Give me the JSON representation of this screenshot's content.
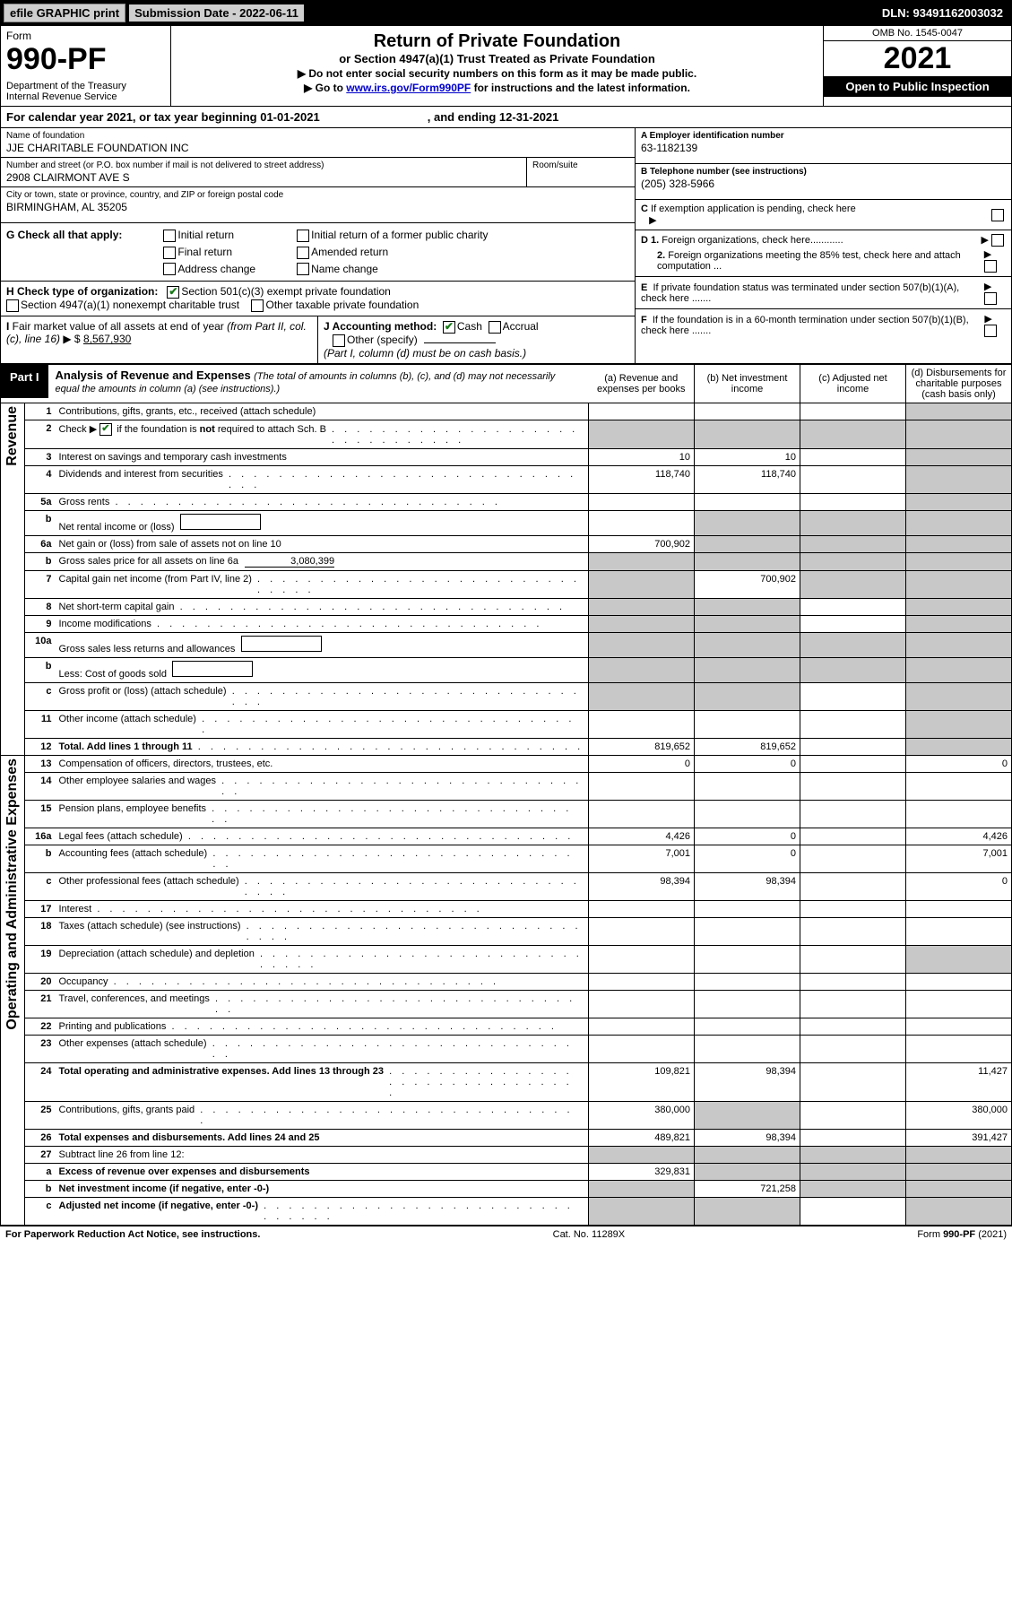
{
  "topbar": {
    "efile": "efile GRAPHIC print",
    "submission_label": "Submission Date - 2022-06-11",
    "dln": "DLN: 93491162003032"
  },
  "header": {
    "form_label": "Form",
    "form_number": "990-PF",
    "dept": "Department of the Treasury\nInternal Revenue Service",
    "title": "Return of Private Foundation",
    "subtitle": "or Section 4947(a)(1) Trust Treated as Private Foundation",
    "instr1": "▶ Do not enter social security numbers on this form as it may be made public.",
    "instr2_pre": "▶ Go to ",
    "instr2_link": "www.irs.gov/Form990PF",
    "instr2_post": " for instructions and the latest information.",
    "omb": "OMB No. 1545-0047",
    "year": "2021",
    "open": "Open to Public Inspection"
  },
  "calyear": {
    "text_a": "For calendar year 2021, or tax year beginning 01-01-2021",
    "text_b": ", and ending 12-31-2021"
  },
  "info": {
    "name_label": "Name of foundation",
    "name": "JJE CHARITABLE FOUNDATION INC",
    "addr_label": "Number and street (or P.O. box number if mail is not delivered to street address)",
    "addr": "2908 CLAIRMONT AVE S",
    "room_label": "Room/suite",
    "city_label": "City or town, state or province, country, and ZIP or foreign postal code",
    "city": "BIRMINGHAM, AL  35205",
    "a_label": "A Employer identification number",
    "a_val": "63-1182139",
    "b_label": "B Telephone number (see instructions)",
    "b_val": "(205) 328-5966",
    "c_label": "C If exemption application is pending, check here",
    "d1_label": "D 1. Foreign organizations, check here............",
    "d2_label": "2. Foreign organizations meeting the 85% test, check here and attach computation ...",
    "e_label": "E  If private foundation status was terminated under section 507(b)(1)(A), check here .......",
    "f_label": "F  If the foundation is in a 60-month termination under section 507(b)(1)(B), check here ......."
  },
  "g": {
    "label": "G Check all that apply:",
    "opts": [
      "Initial return",
      "Final return",
      "Address change",
      "Initial return of a former public charity",
      "Amended return",
      "Name change"
    ]
  },
  "h": {
    "label": "H Check type of organization:",
    "opt1": "Section 501(c)(3) exempt private foundation",
    "opt2": "Section 4947(a)(1) nonexempt charitable trust",
    "opt3": "Other taxable private foundation"
  },
  "i": {
    "label": "I Fair market value of all assets at end of year (from Part II, col. (c), line 16) ▶ $",
    "val": "8,567,930"
  },
  "j": {
    "label": "J Accounting method:",
    "cash": "Cash",
    "accrual": "Accrual",
    "other": "Other (specify)",
    "note": "(Part I, column (d) must be on cash basis.)"
  },
  "part1": {
    "label": "Part I",
    "title": "Analysis of Revenue and Expenses",
    "note": "(The total of amounts in columns (b), (c), and (d) may not necessarily equal the amounts in column (a) (see instructions).)",
    "cols": {
      "a": "(a)   Revenue and expenses per books",
      "b": "(b)   Net investment income",
      "c": "(c)   Adjusted net income",
      "d": "(d)   Disbursements for charitable purposes (cash basis only)"
    },
    "side_revenue": "Revenue",
    "side_expenses": "Operating and Administrative Expenses",
    "rows": [
      {
        "n": "1",
        "desc": "Contributions, gifts, grants, etc., received (attach schedule)",
        "a": "",
        "b": "",
        "c": "",
        "d": "",
        "d_grey": true,
        "dots": false
      },
      {
        "n": "2",
        "desc": "Check ▶ ☑ if the foundation is not required to attach Sch. B",
        "a": "",
        "b": "",
        "c": "",
        "d": "",
        "all_grey": true,
        "dots": true
      },
      {
        "n": "3",
        "desc": "Interest on savings and temporary cash investments",
        "a": "10",
        "b": "10",
        "c": "",
        "d": "",
        "d_grey": true
      },
      {
        "n": "4",
        "desc": "Dividends and interest from securities",
        "a": "118,740",
        "b": "118,740",
        "c": "",
        "d": "",
        "d_grey": true,
        "dots": true
      },
      {
        "n": "5a",
        "desc": "Gross rents",
        "a": "",
        "b": "",
        "c": "",
        "d": "",
        "d_grey": true,
        "dots": true
      },
      {
        "n": "b",
        "desc": "Net rental income or (loss)",
        "a": "",
        "b": "",
        "c": "",
        "d": "",
        "bcd_grey": true,
        "has_box": true
      },
      {
        "n": "6a",
        "desc": "Net gain or (loss) from sale of assets not on line 10",
        "a": "700,902",
        "b": "",
        "c": "",
        "d": "",
        "bcd_grey": true
      },
      {
        "n": "b",
        "desc": "Gross sales price for all assets on line 6a",
        "a": "",
        "b": "",
        "c": "",
        "d": "",
        "all_grey": true,
        "inline_val": "3,080,399"
      },
      {
        "n": "7",
        "desc": "Capital gain net income (from Part IV, line 2)",
        "a": "",
        "b": "700,902",
        "c": "",
        "d": "",
        "a_grey": true,
        "cd_grey": true,
        "dots": true
      },
      {
        "n": "8",
        "desc": "Net short-term capital gain",
        "a": "",
        "b": "",
        "c": "",
        "d": "",
        "ab_grey": true,
        "d_grey": true,
        "dots": true
      },
      {
        "n": "9",
        "desc": "Income modifications",
        "a": "",
        "b": "",
        "c": "",
        "d": "",
        "ab_grey": true,
        "d_grey": true,
        "dots": true
      },
      {
        "n": "10a",
        "desc": "Gross sales less returns and allowances",
        "a": "",
        "b": "",
        "c": "",
        "d": "",
        "all_grey": true,
        "has_box": true
      },
      {
        "n": "b",
        "desc": "Less: Cost of goods sold",
        "a": "",
        "b": "",
        "c": "",
        "d": "",
        "all_grey": true,
        "has_box": true,
        "dots": true
      },
      {
        "n": "c",
        "desc": "Gross profit or (loss) (attach schedule)",
        "a": "",
        "b": "",
        "c": "",
        "d": "",
        "ab_grey": true,
        "d_grey": true,
        "dots": true
      },
      {
        "n": "11",
        "desc": "Other income (attach schedule)",
        "a": "",
        "b": "",
        "c": "",
        "d": "",
        "d_grey": true,
        "dots": true
      },
      {
        "n": "12",
        "desc": "Total. Add lines 1 through 11",
        "a": "819,652",
        "b": "819,652",
        "c": "",
        "d": "",
        "d_grey": true,
        "bold": true,
        "dots": true
      },
      {
        "n": "13",
        "desc": "Compensation of officers, directors, trustees, etc.",
        "a": "0",
        "b": "0",
        "c": "",
        "d": "0"
      },
      {
        "n": "14",
        "desc": "Other employee salaries and wages",
        "a": "",
        "b": "",
        "c": "",
        "d": "",
        "dots": true
      },
      {
        "n": "15",
        "desc": "Pension plans, employee benefits",
        "a": "",
        "b": "",
        "c": "",
        "d": "",
        "dots": true
      },
      {
        "n": "16a",
        "desc": "Legal fees (attach schedule)",
        "a": "4,426",
        "b": "0",
        "c": "",
        "d": "4,426",
        "dots": true
      },
      {
        "n": "b",
        "desc": "Accounting fees (attach schedule)",
        "a": "7,001",
        "b": "0",
        "c": "",
        "d": "7,001",
        "dots": true
      },
      {
        "n": "c",
        "desc": "Other professional fees (attach schedule)",
        "a": "98,394",
        "b": "98,394",
        "c": "",
        "d": "0",
        "dots": true
      },
      {
        "n": "17",
        "desc": "Interest",
        "a": "",
        "b": "",
        "c": "",
        "d": "",
        "dots": true
      },
      {
        "n": "18",
        "desc": "Taxes (attach schedule) (see instructions)",
        "a": "",
        "b": "",
        "c": "",
        "d": "",
        "dots": true
      },
      {
        "n": "19",
        "desc": "Depreciation (attach schedule) and depletion",
        "a": "",
        "b": "",
        "c": "",
        "d": "",
        "d_grey": true,
        "dots": true
      },
      {
        "n": "20",
        "desc": "Occupancy",
        "a": "",
        "b": "",
        "c": "",
        "d": "",
        "dots": true
      },
      {
        "n": "21",
        "desc": "Travel, conferences, and meetings",
        "a": "",
        "b": "",
        "c": "",
        "d": "",
        "dots": true
      },
      {
        "n": "22",
        "desc": "Printing and publications",
        "a": "",
        "b": "",
        "c": "",
        "d": "",
        "dots": true
      },
      {
        "n": "23",
        "desc": "Other expenses (attach schedule)",
        "a": "",
        "b": "",
        "c": "",
        "d": "",
        "dots": true
      },
      {
        "n": "24",
        "desc": "Total operating and administrative expenses. Add lines 13 through 23",
        "a": "109,821",
        "b": "98,394",
        "c": "",
        "d": "11,427",
        "bold": true,
        "dots": true
      },
      {
        "n": "25",
        "desc": "Contributions, gifts, grants paid",
        "a": "380,000",
        "b": "",
        "c": "",
        "d": "380,000",
        "b_grey": true,
        "dots": true
      },
      {
        "n": "26",
        "desc": "Total expenses and disbursements. Add lines 24 and 25",
        "a": "489,821",
        "b": "98,394",
        "c": "",
        "d": "391,427",
        "bold": true
      },
      {
        "n": "27",
        "desc": "Subtract line 26 from line 12:",
        "a": "",
        "b": "",
        "c": "",
        "d": "",
        "all_grey": true
      },
      {
        "n": "a",
        "desc": "Excess of revenue over expenses and disbursements",
        "a": "329,831",
        "b": "",
        "c": "",
        "d": "",
        "bcd_grey": true,
        "bold": true
      },
      {
        "n": "b",
        "desc": "Net investment income (if negative, enter -0-)",
        "a": "",
        "b": "721,258",
        "c": "",
        "d": "",
        "a_grey": true,
        "cd_grey": true,
        "bold": true
      },
      {
        "n": "c",
        "desc": "Adjusted net income (if negative, enter -0-)",
        "a": "",
        "b": "",
        "c": "",
        "d": "",
        "ab_grey": true,
        "d_grey": true,
        "bold": true,
        "dots": true
      }
    ]
  },
  "footer": {
    "left": "For Paperwork Reduction Act Notice, see instructions.",
    "mid": "Cat. No. 11289X",
    "right": "Form 990-PF (2021)"
  },
  "colors": {
    "grey": "#c8c8c8",
    "link": "#0000cc",
    "check": "#1a7a1a"
  }
}
